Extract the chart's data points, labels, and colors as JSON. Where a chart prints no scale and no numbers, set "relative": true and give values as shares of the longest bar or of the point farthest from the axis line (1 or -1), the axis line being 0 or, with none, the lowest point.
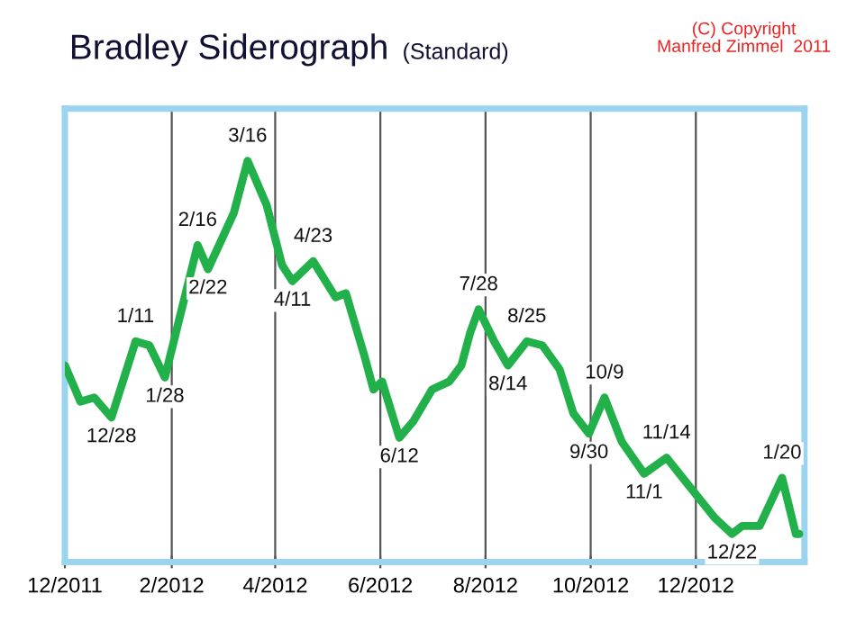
{
  "chart_data": {
    "type": "line",
    "title": "Bradley Siderograph",
    "subtitle": "(Standard)",
    "relative": true,
    "grid": "x",
    "legend": false,
    "marker": "none",
    "line_style": "solid",
    "annotations": [
      "(C) Copyright\nManfred Zimmel  2011",
      {
        "text": "12/28",
        "x": "2011-12-28",
        "y": 0.36
      },
      {
        "text": "1/11",
        "x": "2012-01-11",
        "y": 0.55
      },
      {
        "text": "1/28",
        "x": "2012-01-28",
        "y": 0.46
      },
      {
        "text": "2/16",
        "x": "2012-02-16",
        "y": 0.79
      },
      {
        "text": "2/22",
        "x": "2012-02-22",
        "y": 0.73
      },
      {
        "text": "3/16",
        "x": "2012-03-16",
        "y": 1.0
      },
      {
        "text": "4/11",
        "x": "2012-04-11",
        "y": 0.7
      },
      {
        "text": "4/23",
        "x": "2012-04-23",
        "y": 0.75
      },
      {
        "text": "6/12",
        "x": "2012-06-12",
        "y": 0.31
      },
      {
        "text": "7/28",
        "x": "2012-07-28",
        "y": 0.63
      },
      {
        "text": "8/14",
        "x": "2012-08-14",
        "y": 0.49
      },
      {
        "text": "8/25",
        "x": "2012-08-25",
        "y": 0.55
      },
      {
        "text": "9/30",
        "x": "2012-09-30",
        "y": 0.32
      },
      {
        "text": "10/9",
        "x": "2012-10-09",
        "y": 0.41
      },
      {
        "text": "11/1",
        "x": "2012-11-01",
        "y": 0.22
      },
      {
        "text": "11/14",
        "x": "2012-11-14",
        "y": 0.26
      },
      {
        "text": "12/22",
        "x": "2012-12-22",
        "y": 0.07
      },
      {
        "text": "1/20",
        "x": "2013-01-20",
        "y": 0.21
      }
    ],
    "xlim": [
      "2011-12-01",
      "2013-02-02"
    ],
    "xticks": [
      {
        "value": "2011-12-01",
        "label": "12/2011"
      },
      {
        "value": "2012-02-01",
        "label": "2/2012"
      },
      {
        "value": "2012-04-01",
        "label": "4/2012"
      },
      {
        "value": "2012-06-01",
        "label": "6/2012"
      },
      {
        "value": "2012-08-01",
        "label": "8/2012"
      },
      {
        "value": "2012-10-01",
        "label": "10/2012"
      },
      {
        "value": "2012-12-01",
        "label": "12/2012"
      }
    ],
    "series": [
      {
        "color": "#22b04a",
        "x": [
          "2011-12-01",
          "2011-12-10",
          "2011-12-18",
          "2011-12-28",
          "2012-01-11",
          "2012-01-19",
          "2012-01-28",
          "2012-02-16",
          "2012-02-22",
          "2012-03-08",
          "2012-03-16",
          "2012-03-27",
          "2012-04-05",
          "2012-04-11",
          "2012-04-23",
          "2012-05-06",
          "2012-05-12",
          "2012-05-23",
          "2012-05-28",
          "2012-06-02",
          "2012-06-12",
          "2012-06-20",
          "2012-07-01",
          "2012-07-11",
          "2012-07-18",
          "2012-07-23",
          "2012-07-28",
          "2012-08-06",
          "2012-08-14",
          "2012-08-25",
          "2012-09-03",
          "2012-09-13",
          "2012-09-21",
          "2012-09-30",
          "2012-10-09",
          "2012-10-19",
          "2012-11-01",
          "2012-11-14",
          "2012-11-27",
          "2012-12-12",
          "2012-12-22",
          "2012-12-28",
          "2013-01-07",
          "2013-01-20",
          "2013-01-28",
          "2013-01-30"
        ],
        "values": [
          0.49,
          0.4,
          0.41,
          0.36,
          0.55,
          0.54,
          0.46,
          0.79,
          0.73,
          0.87,
          1.0,
          0.89,
          0.74,
          0.7,
          0.75,
          0.66,
          0.67,
          0.51,
          0.43,
          0.45,
          0.31,
          0.35,
          0.43,
          0.45,
          0.49,
          0.57,
          0.63,
          0.55,
          0.49,
          0.55,
          0.54,
          0.48,
          0.37,
          0.32,
          0.41,
          0.3,
          0.22,
          0.26,
          0.19,
          0.11,
          0.07,
          0.09,
          0.09,
          0.21,
          0.07,
          0.07
        ]
      }
    ]
  }
}
